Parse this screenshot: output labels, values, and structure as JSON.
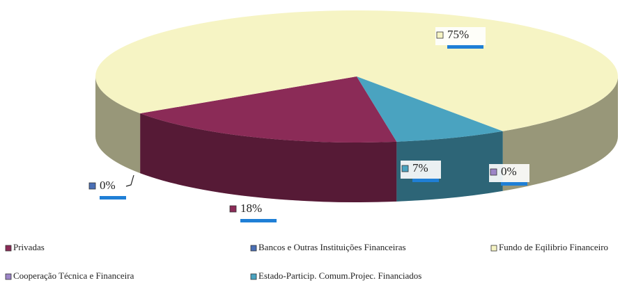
{
  "chart_data": {
    "type": "pie3d",
    "categories": [
      "Privadas",
      "Bancos e Outras Instituições Financeiras",
      "Fundo de Eqilibrio Financeiro",
      "Cooperação Técnica e Financeira",
      "Estado-Particip. Comum.Projec. Financiados"
    ],
    "values": [
      18,
      0,
      75,
      0,
      7
    ],
    "value_labels": [
      "18%",
      "0%",
      "75%",
      "0%",
      "7%"
    ],
    "colors": [
      "#8b2b57",
      "#4a6fb5",
      "#f6f4c4",
      "#9d85c8",
      "#4aa3c0"
    ],
    "legend": "bottom"
  }
}
